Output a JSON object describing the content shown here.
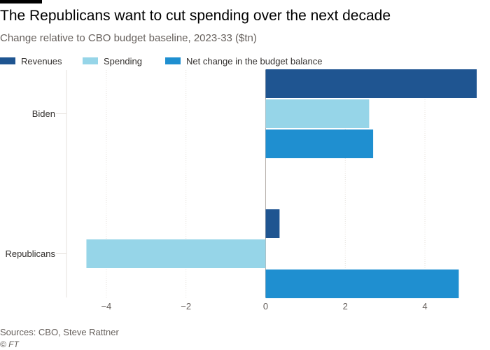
{
  "title": "The Republicans want to cut spending over the next decade",
  "subtitle": "Change relative to CBO budget baseline, 2023-33 ($tn)",
  "source": "Sources: CBO, Steve Rattner",
  "credit": "© FT",
  "colors": {
    "revenues": "#1f5591",
    "spending": "#96d5e8",
    "net": "#1f8fd0",
    "grid": "#e6e1dc",
    "axis_text": "#66605c"
  },
  "chart_data": {
    "type": "bar",
    "orientation": "horizontal",
    "categories": [
      "Biden",
      "Republicans"
    ],
    "series": [
      {
        "name": "Revenues",
        "color": "#1f5591",
        "values": [
          5.3,
          0.35
        ]
      },
      {
        "name": "Spending",
        "color": "#96d5e8",
        "values": [
          2.6,
          -4.5
        ]
      },
      {
        "name": "Net change in the budget balance",
        "color": "#1f8fd0",
        "values": [
          2.7,
          4.85
        ]
      }
    ],
    "x_ticks": [
      -4,
      -2,
      0,
      2,
      4
    ],
    "xlim": [
      -5,
      5.3
    ],
    "grid": true,
    "legend_position": "top-left",
    "title": "The Republicans want to cut spending over the next decade",
    "subtitle": "Change relative to CBO budget baseline, 2023-33 ($tn)",
    "xlabel": "",
    "ylabel": ""
  }
}
